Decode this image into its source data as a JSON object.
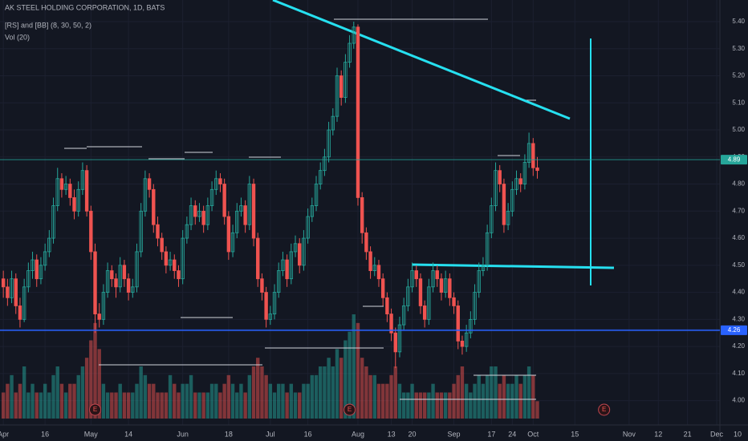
{
  "chart_data": {
    "type": "candlestick",
    "title": "AK STEEL HOLDING CORPORATION, 1D, BATS",
    "indicators": [
      "[RS] and [BB] (8, 30, 50, 2)",
      "Vol (20)"
    ],
    "up_color": "#26a69a",
    "down_color": "#ef5350",
    "ylim": [
      3.91,
      5.48
    ],
    "yticks": [
      {
        "value": 4.0,
        "label": "4.00"
      },
      {
        "value": 4.1,
        "label": "4.10"
      },
      {
        "value": 4.2,
        "label": "4.20"
      },
      {
        "value": 4.3,
        "label": "4.30"
      },
      {
        "value": 4.4,
        "label": "4.40"
      },
      {
        "value": 4.5,
        "label": "4.50"
      },
      {
        "value": 4.6,
        "label": "4.60"
      },
      {
        "value": 4.7,
        "label": "4.70"
      },
      {
        "value": 4.8,
        "label": "4.80"
      },
      {
        "value": 4.9,
        "label": "4.90"
      },
      {
        "value": 5.0,
        "label": "5.00"
      },
      {
        "value": 5.1,
        "label": "5.10"
      },
      {
        "value": 5.2,
        "label": "5.20"
      },
      {
        "value": 5.3,
        "label": "5.30"
      },
      {
        "value": 5.4,
        "label": "5.40"
      }
    ],
    "xlim": [
      -0.8,
      178.5
    ],
    "xticks": [
      {
        "value": 0,
        "label": "Apr"
      },
      {
        "value": 10,
        "label": "16"
      },
      {
        "value": 21,
        "label": "May"
      },
      {
        "value": 30,
        "label": "14"
      },
      {
        "value": 43,
        "label": "Jun"
      },
      {
        "value": 54,
        "label": "18"
      },
      {
        "value": 64,
        "label": "Jul"
      },
      {
        "value": 73,
        "label": "16"
      },
      {
        "value": 85,
        "label": "Aug"
      },
      {
        "value": 93,
        "label": "13"
      },
      {
        "value": 98,
        "label": "20"
      },
      {
        "value": 108,
        "label": "Sep"
      },
      {
        "value": 117,
        "label": "17"
      },
      {
        "value": 122,
        "label": "24"
      },
      {
        "value": 127,
        "label": "Oct"
      },
      {
        "value": 137,
        "label": "15"
      },
      {
        "value": 150,
        "label": "Nov"
      },
      {
        "value": 157,
        "label": "12"
      },
      {
        "value": 164,
        "label": "21"
      },
      {
        "value": 171,
        "label": "Dec"
      },
      {
        "value": 176,
        "label": "10"
      }
    ],
    "grid": true,
    "price_lines": [
      {
        "value": 4.89,
        "color": "#26a69a"
      },
      {
        "value": 4.26,
        "color": "#2962ff"
      }
    ],
    "events": {
      "x": [
        22,
        83,
        144
      ],
      "labels": [
        "E",
        "E",
        "E"
      ]
    },
    "candles": [
      [
        4.45,
        4.48,
        4.38,
        4.42
      ],
      [
        4.42,
        4.45,
        4.35,
        4.38
      ],
      [
        4.38,
        4.48,
        4.36,
        4.45
      ],
      [
        4.45,
        4.47,
        4.32,
        4.35
      ],
      [
        4.35,
        4.38,
        4.27,
        4.3
      ],
      [
        4.3,
        4.45,
        4.29,
        4.42
      ],
      [
        4.42,
        4.51,
        4.4,
        4.48
      ],
      [
        4.48,
        4.55,
        4.45,
        4.52
      ],
      [
        4.52,
        4.54,
        4.42,
        4.45
      ],
      [
        4.45,
        4.53,
        4.43,
        4.5
      ],
      [
        4.5,
        4.58,
        4.48,
        4.55
      ],
      [
        4.55,
        4.63,
        4.53,
        4.6
      ],
      [
        4.6,
        4.75,
        4.58,
        4.72
      ],
      [
        4.72,
        4.86,
        4.7,
        4.82
      ],
      [
        4.82,
        4.84,
        4.75,
        4.78
      ],
      [
        4.78,
        4.83,
        4.76,
        4.8
      ],
      [
        4.8,
        4.82,
        4.72,
        4.75
      ],
      [
        4.75,
        4.78,
        4.67,
        4.7
      ],
      [
        4.7,
        4.81,
        4.68,
        4.78
      ],
      [
        4.78,
        4.88,
        4.76,
        4.85
      ],
      [
        4.85,
        4.87,
        4.68,
        4.7
      ],
      [
        4.7,
        4.72,
        4.52,
        4.55
      ],
      [
        4.55,
        4.58,
        4.25,
        4.32
      ],
      [
        4.32,
        4.36,
        4.27,
        4.3
      ],
      [
        4.3,
        4.43,
        4.28,
        4.4
      ],
      [
        4.4,
        4.51,
        4.38,
        4.48
      ],
      [
        4.48,
        4.5,
        4.42,
        4.45
      ],
      [
        4.45,
        4.47,
        4.38,
        4.42
      ],
      [
        4.42,
        4.53,
        4.4,
        4.5
      ],
      [
        4.5,
        4.52,
        4.42,
        4.45
      ],
      [
        4.45,
        4.47,
        4.37,
        4.4
      ],
      [
        4.4,
        4.45,
        4.38,
        4.42
      ],
      [
        4.42,
        4.58,
        4.4,
        4.55
      ],
      [
        4.55,
        4.73,
        4.53,
        4.7
      ],
      [
        4.7,
        4.85,
        4.68,
        4.82
      ],
      [
        4.82,
        4.84,
        4.75,
        4.78
      ],
      [
        4.78,
        4.8,
        4.62,
        4.65
      ],
      [
        4.65,
        4.68,
        4.57,
        4.6
      ],
      [
        4.6,
        4.62,
        4.52,
        4.55
      ],
      [
        4.55,
        4.57,
        4.47,
        4.5
      ],
      [
        4.5,
        4.55,
        4.48,
        4.52
      ],
      [
        4.52,
        4.54,
        4.45,
        4.48
      ],
      [
        4.48,
        4.5,
        4.42,
        4.45
      ],
      [
        4.45,
        4.63,
        4.43,
        4.6
      ],
      [
        4.6,
        4.68,
        4.58,
        4.65
      ],
      [
        4.65,
        4.75,
        4.63,
        4.72
      ],
      [
        4.72,
        4.74,
        4.65,
        4.68
      ],
      [
        4.68,
        4.73,
        4.66,
        4.7
      ],
      [
        4.7,
        4.72,
        4.62,
        4.65
      ],
      [
        4.65,
        4.75,
        4.63,
        4.72
      ],
      [
        4.72,
        4.81,
        4.7,
        4.78
      ],
      [
        4.78,
        4.85,
        4.76,
        4.82
      ],
      [
        4.82,
        4.84,
        4.77,
        4.8
      ],
      [
        4.8,
        4.82,
        4.65,
        4.68
      ],
      [
        4.68,
        4.7,
        4.52,
        4.55
      ],
      [
        4.55,
        4.65,
        4.53,
        4.62
      ],
      [
        4.62,
        4.73,
        4.6,
        4.7
      ],
      [
        4.7,
        4.75,
        4.68,
        4.72
      ],
      [
        4.72,
        4.74,
        4.62,
        4.65
      ],
      [
        4.65,
        4.83,
        4.63,
        4.8
      ],
      [
        4.8,
        4.82,
        4.57,
        4.6
      ],
      [
        4.6,
        4.62,
        4.42,
        4.45
      ],
      [
        4.45,
        4.47,
        4.37,
        4.4
      ],
      [
        4.4,
        4.42,
        4.27,
        4.3
      ],
      [
        4.3,
        4.35,
        4.28,
        4.32
      ],
      [
        4.32,
        4.43,
        4.3,
        4.4
      ],
      [
        4.4,
        4.51,
        4.38,
        4.48
      ],
      [
        4.48,
        4.55,
        4.46,
        4.52
      ],
      [
        4.52,
        4.54,
        4.42,
        4.45
      ],
      [
        4.45,
        4.58,
        4.43,
        4.55
      ],
      [
        4.55,
        4.61,
        4.53,
        4.58
      ],
      [
        4.58,
        4.6,
        4.47,
        4.5
      ],
      [
        4.5,
        4.63,
        4.48,
        4.6
      ],
      [
        4.6,
        4.71,
        4.58,
        4.68
      ],
      [
        4.68,
        4.75,
        4.66,
        4.72
      ],
      [
        4.72,
        4.83,
        4.7,
        4.8
      ],
      [
        4.8,
        4.88,
        4.78,
        4.85
      ],
      [
        4.85,
        4.93,
        4.83,
        4.9
      ],
      [
        4.9,
        5.03,
        4.88,
        5.0
      ],
      [
        5.0,
        5.08,
        4.98,
        5.05
      ],
      [
        5.05,
        5.23,
        5.03,
        5.2
      ],
      [
        5.2,
        5.22,
        5.09,
        5.12
      ],
      [
        5.12,
        5.28,
        5.1,
        5.25
      ],
      [
        5.25,
        5.35,
        5.23,
        5.32
      ],
      [
        5.32,
        5.4,
        5.3,
        5.38
      ],
      [
        5.38,
        5.39,
        4.72,
        4.75
      ],
      [
        4.75,
        4.77,
        4.58,
        4.62
      ],
      [
        4.62,
        4.64,
        4.52,
        4.55
      ],
      [
        4.55,
        4.57,
        4.45,
        4.48
      ],
      [
        4.48,
        4.53,
        4.46,
        4.5
      ],
      [
        4.5,
        4.52,
        4.42,
        4.45
      ],
      [
        4.45,
        4.47,
        4.35,
        4.38
      ],
      [
        4.38,
        4.4,
        4.29,
        4.32
      ],
      [
        4.32,
        4.34,
        4.22,
        4.25
      ],
      [
        4.25,
        4.27,
        4.12,
        4.18
      ],
      [
        4.18,
        4.31,
        4.16,
        4.28
      ],
      [
        4.28,
        4.38,
        4.26,
        4.35
      ],
      [
        4.35,
        4.45,
        4.33,
        4.42
      ],
      [
        4.42,
        4.51,
        4.4,
        4.48
      ],
      [
        4.48,
        4.5,
        4.42,
        4.45
      ],
      [
        4.45,
        4.47,
        4.32,
        4.35
      ],
      [
        4.35,
        4.37,
        4.27,
        4.3
      ],
      [
        4.3,
        4.45,
        4.28,
        4.42
      ],
      [
        4.42,
        4.51,
        4.4,
        4.48
      ],
      [
        4.48,
        4.5,
        4.42,
        4.45
      ],
      [
        4.45,
        4.47,
        4.37,
        4.4
      ],
      [
        4.4,
        4.48,
        4.38,
        4.45
      ],
      [
        4.45,
        4.47,
        4.35,
        4.38
      ],
      [
        4.38,
        4.4,
        4.32,
        4.35
      ],
      [
        4.35,
        4.37,
        4.19,
        4.22
      ],
      [
        4.22,
        4.24,
        4.17,
        4.2
      ],
      [
        4.2,
        4.28,
        4.18,
        4.25
      ],
      [
        4.25,
        4.33,
        4.23,
        4.3
      ],
      [
        4.3,
        4.43,
        4.28,
        4.4
      ],
      [
        4.4,
        4.51,
        4.38,
        4.48
      ],
      [
        4.48,
        4.53,
        4.46,
        4.5
      ],
      [
        4.5,
        4.65,
        4.48,
        4.62
      ],
      [
        4.62,
        4.75,
        4.6,
        4.72
      ],
      [
        4.72,
        4.88,
        4.7,
        4.85
      ],
      [
        4.85,
        4.87,
        4.77,
        4.8
      ],
      [
        4.8,
        4.82,
        4.62,
        4.65
      ],
      [
        4.65,
        4.73,
        4.63,
        4.7
      ],
      [
        4.7,
        4.81,
        4.68,
        4.78
      ],
      [
        4.78,
        4.85,
        4.76,
        4.82
      ],
      [
        4.82,
        4.84,
        4.77,
        4.8
      ],
      [
        4.8,
        4.91,
        4.78,
        4.88
      ],
      [
        4.88,
        4.99,
        4.86,
        4.95
      ],
      [
        4.95,
        4.97,
        4.83,
        4.86
      ],
      [
        4.86,
        4.9,
        4.82,
        4.85
      ]
    ],
    "volume": [
      3,
      4,
      5,
      3,
      4,
      6,
      3,
      4,
      3,
      3,
      4,
      3,
      5,
      6,
      4,
      3,
      4,
      4,
      5,
      6,
      7,
      9,
      11,
      8,
      4,
      3,
      3,
      3,
      4,
      3,
      3,
      3,
      4,
      6,
      5,
      4,
      4,
      3,
      3,
      3,
      5,
      4,
      3,
      4,
      4,
      5,
      3,
      3,
      3,
      3,
      4,
      4,
      3,
      4,
      5,
      4,
      3,
      4,
      3,
      5,
      6,
      7,
      6,
      5,
      4,
      3,
      4,
      4,
      3,
      4,
      3,
      3,
      4,
      4,
      5,
      5,
      6,
      6,
      7,
      6,
      8,
      7,
      9,
      10,
      12,
      11,
      7,
      6,
      5,
      5,
      4,
      4,
      4,
      5,
      6,
      4,
      3,
      3,
      4,
      3,
      3,
      3,
      3,
      4,
      3,
      3,
      3,
      3,
      4,
      5,
      6,
      4,
      3,
      4,
      5,
      4,
      5,
      6,
      6,
      4,
      5,
      4,
      4,
      5,
      4,
      5,
      6,
      5,
      2
    ]
  }
}
